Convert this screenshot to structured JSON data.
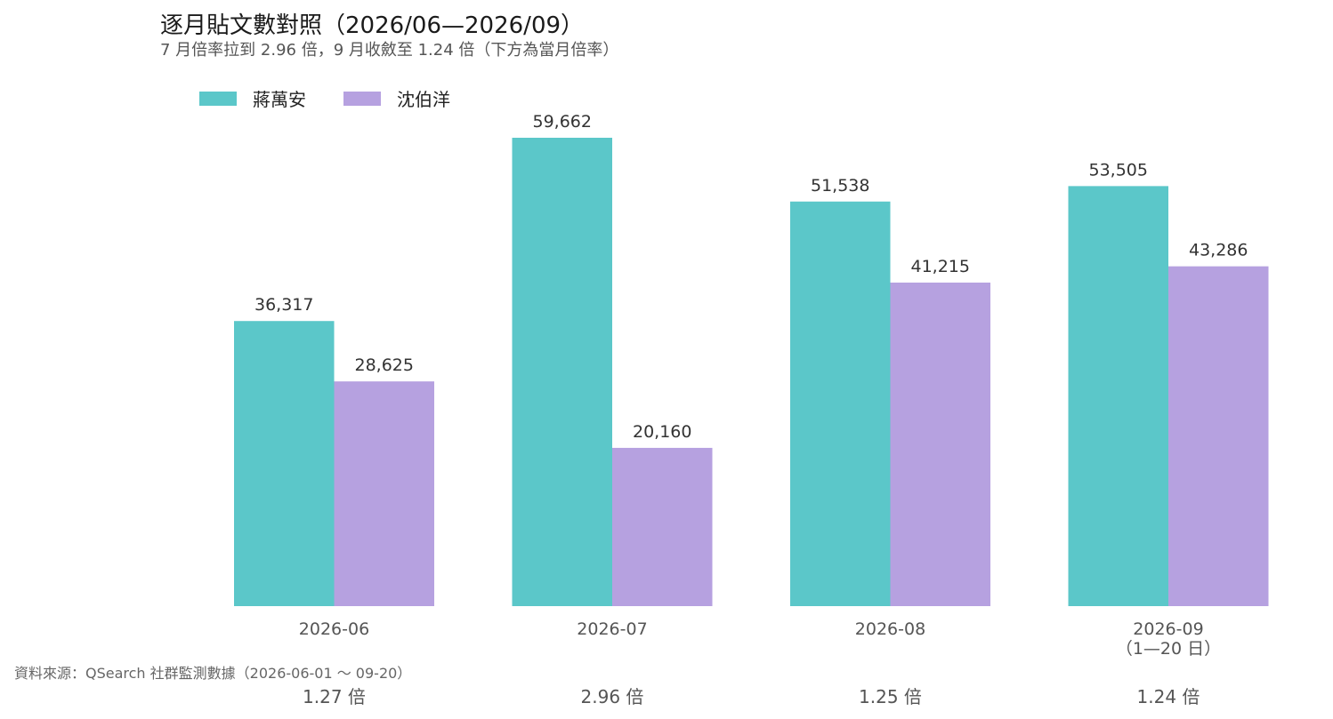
{
  "title": "逐月貼文數對照（2026/06—2026/09）",
  "subtitle": "7 月倍率拉到 2.96 倍，9 月收斂至 1.24 倍（下方為當月倍率）",
  "source": "資料來源：QSearch 社群監測數據（2026-06-01 ～ 09-20）",
  "colors": {
    "series1": "#5bc7c9",
    "series2": "#b6a1e0"
  },
  "chart_data": {
    "type": "bar",
    "categories": [
      "2026-06",
      "2026-07",
      "2026-08",
      "2026-09"
    ],
    "category_sublabels": [
      "",
      "",
      "",
      "（1—20 日）"
    ],
    "series": [
      {
        "name": "蔣萬安",
        "values": [
          36317,
          59662,
          51538,
          53505
        ],
        "labels": [
          "36,317",
          "59,662",
          "51,538",
          "53,505"
        ]
      },
      {
        "name": "沈伯洋",
        "values": [
          28625,
          20160,
          41215,
          43286
        ],
        "labels": [
          "28,625",
          "20,160",
          "41,215",
          "43,286"
        ]
      }
    ],
    "ratios": [
      "1.27 倍",
      "2.96 倍",
      "1.25 倍",
      "1.24 倍"
    ],
    "ylim": [
      0,
      59662
    ],
    "grid": false,
    "legend_position": "top-left"
  }
}
